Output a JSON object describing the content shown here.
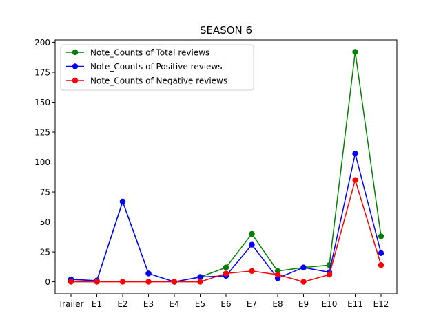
{
  "chart_data": {
    "type": "line",
    "title": "SEASON 6",
    "xlabel": "",
    "ylabel": "",
    "categories": [
      "Trailer",
      "E1",
      "E2",
      "E3",
      "E4",
      "E5",
      "E6",
      "E7",
      "E8",
      "E9",
      "E10",
      "E11",
      "E12"
    ],
    "ylim": [
      -10,
      202
    ],
    "yticks": [
      0,
      25,
      50,
      75,
      100,
      125,
      150,
      175,
      200
    ],
    "grid": false,
    "legend_position": "top-left",
    "series": [
      {
        "name": "Note_Counts of Total reviews",
        "color": "#008000",
        "values": [
          2,
          1,
          67,
          7,
          0,
          4,
          12,
          40,
          9,
          12,
          14,
          192,
          38
        ]
      },
      {
        "name": "Note_Counts of Positive reviews",
        "color": "#0000ff",
        "values": [
          2,
          1,
          67,
          7,
          0,
          4,
          5,
          31,
          3,
          12,
          8,
          107,
          24
        ]
      },
      {
        "name": "Note_Counts of Negative reviews",
        "color": "#ff0000",
        "values": [
          0,
          0,
          0,
          0,
          0,
          0,
          7,
          9,
          6,
          0,
          6,
          85,
          14
        ]
      }
    ]
  }
}
